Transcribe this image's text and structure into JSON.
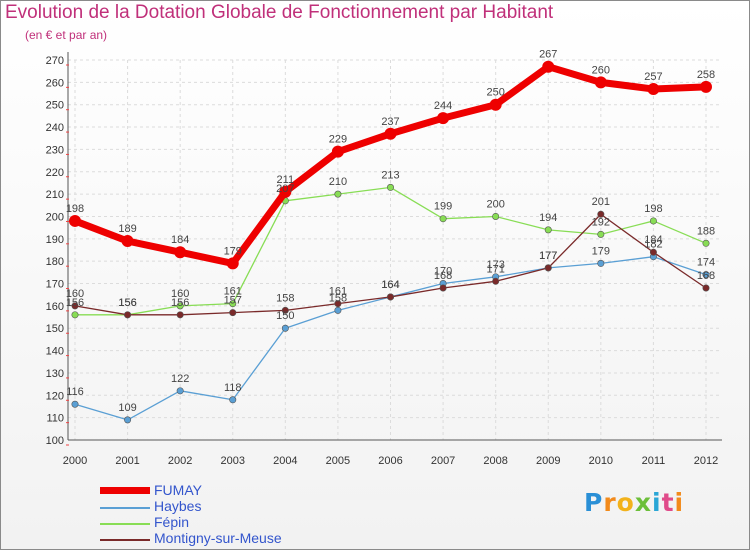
{
  "header": {
    "title": "Evolution de la Dotation Globale de Fonctionnement par Habitant",
    "subtitle": "(en € et par an)"
  },
  "logo": {
    "text": "Proxiti"
  },
  "colors": {
    "FUMAY": "#ee0000",
    "Haybes": "#5a9fd4",
    "Fepin": "#88dd55",
    "Montigny": "#7a2a2a",
    "title": "#c0307a",
    "legend_text": "#3355cc"
  },
  "chart_data": {
    "type": "line",
    "title": "Evolution de la Dotation Globale de Fonctionnement par Habitant",
    "subtitle": "(en € et par an)",
    "x": [
      "2000",
      "2001",
      "2002",
      "2003",
      "2004",
      "2005",
      "2006",
      "2007",
      "2008",
      "2009",
      "2010",
      "2011",
      "2012"
    ],
    "ylim": [
      100,
      270
    ],
    "yticks": [
      100,
      110,
      120,
      130,
      140,
      150,
      160,
      170,
      180,
      190,
      200,
      210,
      220,
      230,
      240,
      250,
      260,
      270
    ],
    "grid": true,
    "legend_position": "bottom-left",
    "series": [
      {
        "name": "FUMAY",
        "color": "#ee0000",
        "values": [
          198,
          189,
          184,
          179,
          211,
          229,
          237,
          244,
          250,
          267,
          260,
          257,
          258
        ],
        "labels": [
          "198",
          "189",
          "184",
          "179",
          "211",
          "229",
          "237",
          "244",
          "250",
          "267",
          "260",
          "257",
          "258"
        ]
      },
      {
        "name": "Haybes",
        "color": "#5a9fd4",
        "values": [
          116,
          109,
          122,
          118,
          150,
          158,
          164,
          170,
          173,
          177,
          179,
          182,
          174
        ],
        "labels": [
          "116",
          "109",
          "122",
          "118",
          "150",
          "158",
          "164",
          "170",
          "173",
          "177",
          "179",
          "182",
          "174"
        ]
      },
      {
        "name": "Fépin",
        "color": "#88dd55",
        "values": [
          156,
          156,
          160,
          161,
          207,
          210,
          213,
          199,
          200,
          194,
          192,
          198,
          188
        ],
        "labels": [
          "156",
          "156",
          "160",
          "161",
          "207",
          "210",
          "213",
          "199",
          "200",
          "194",
          "192",
          "198",
          "188"
        ]
      },
      {
        "name": "Montigny-sur-Meuse",
        "color": "#7a2a2a",
        "values": [
          160,
          156,
          156,
          157,
          158,
          161,
          164,
          168,
          171,
          177,
          201,
          184,
          168
        ],
        "labels": [
          "160",
          "156",
          "156",
          "157",
          "158",
          "161",
          "164",
          "168",
          "171",
          "177",
          "201",
          "184",
          "168"
        ]
      }
    ]
  }
}
